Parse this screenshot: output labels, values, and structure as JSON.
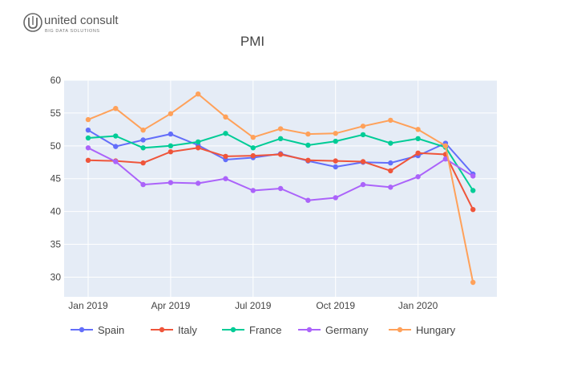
{
  "logo": {
    "brand": "united consult",
    "tagline": "BIG DATA SOLUTIONS",
    "icon": "u-circle-logo-icon"
  },
  "chart_data": {
    "type": "line",
    "title": "PMI",
    "xlabel": "",
    "ylabel": "",
    "x": [
      "2019-01",
      "2019-02",
      "2019-03",
      "2019-04",
      "2019-05",
      "2019-06",
      "2019-07",
      "2019-08",
      "2019-09",
      "2019-10",
      "2019-11",
      "2019-12",
      "2020-01",
      "2020-02",
      "2020-03"
    ],
    "x_tick_labels": [
      {
        "at": "2019-01",
        "label": "Jan 2019"
      },
      {
        "at": "2019-04",
        "label": "Apr 2019"
      },
      {
        "at": "2019-07",
        "label": "Jul 2019"
      },
      {
        "at": "2019-10",
        "label": "Oct 2019"
      },
      {
        "at": "2020-01",
        "label": "Jan 2020"
      }
    ],
    "ylim": [
      27,
      60
    ],
    "y_ticks": [
      30,
      35,
      40,
      45,
      50,
      55,
      60
    ],
    "grid": true,
    "legend_position": "bottom-left",
    "series": [
      {
        "name": "Spain",
        "color": "#636efa",
        "values": [
          52.4,
          49.9,
          50.9,
          51.8,
          50.1,
          47.9,
          48.2,
          48.8,
          47.7,
          46.8,
          47.5,
          47.4,
          48.5,
          50.4,
          45.7
        ]
      },
      {
        "name": "Italy",
        "color": "#ef553b",
        "values": [
          47.8,
          47.7,
          47.4,
          49.1,
          49.7,
          48.4,
          48.5,
          48.7,
          47.8,
          47.7,
          47.6,
          46.2,
          48.9,
          48.7,
          40.3
        ]
      },
      {
        "name": "France",
        "color": "#00cc96",
        "values": [
          51.2,
          51.5,
          49.7,
          50.0,
          50.6,
          51.9,
          49.7,
          51.1,
          50.1,
          50.7,
          51.7,
          50.4,
          51.1,
          49.8,
          43.2
        ]
      },
      {
        "name": "Germany",
        "color": "#ab63fa",
        "values": [
          49.7,
          47.6,
          44.1,
          44.4,
          44.3,
          45.0,
          43.2,
          43.5,
          41.7,
          42.1,
          44.1,
          43.7,
          45.3,
          48.0,
          45.4
        ]
      },
      {
        "name": "Hungary",
        "color": "#ffa15a",
        "values": [
          54.0,
          55.7,
          52.4,
          54.9,
          57.9,
          54.4,
          51.3,
          52.6,
          51.8,
          51.9,
          53.0,
          53.9,
          52.5,
          50.0,
          29.2
        ]
      }
    ]
  }
}
